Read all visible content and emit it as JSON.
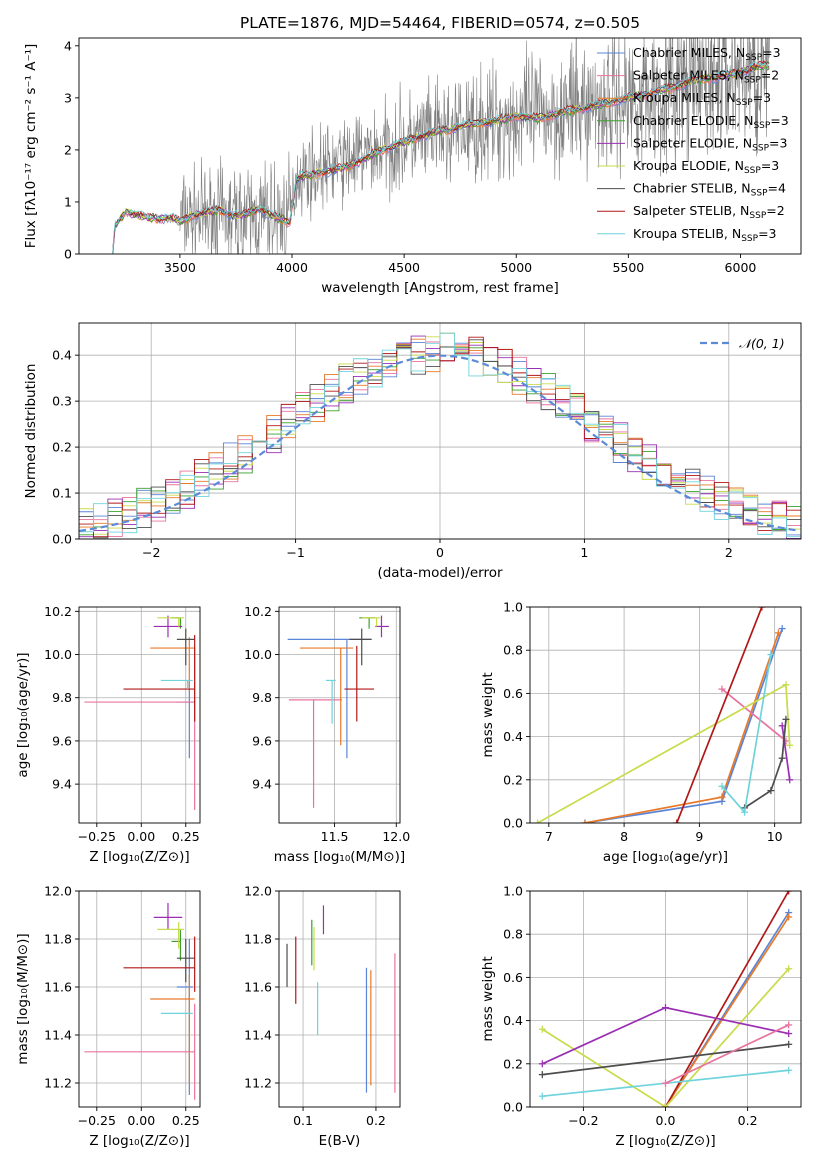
{
  "title": "PLATE=1876, MJD=54464, FIBERID=0574, z=0.505",
  "colors": {
    "Chabrier MILES": "#5b84d6",
    "Salpeter MILES": "#e8739f",
    "Kroupa MILES": "#e87a2a",
    "Chabrier ELODIE": "#3aa02e",
    "Salpeter ELODIE": "#9a2fb3",
    "Kroupa ELODIE": "#c9db4a",
    "Chabrier STELIB": "#4d4d4d",
    "Salpeter STELIB": "#b01818",
    "Kroupa STELIB": "#6fd3dc",
    "data": "#808080",
    "normal": "#5b8bd6"
  },
  "chart_data": [
    {
      "id": "spectrum",
      "type": "line",
      "xlabel": "wavelength [Angstrom, rest frame]",
      "ylabel": "Flux [fλ10⁻¹⁷ erg cm⁻² s⁻¹ A⁻¹]",
      "xlim": [
        3050,
        6270
      ],
      "ylim": [
        0,
        4.15
      ],
      "xticks": [
        3500,
        4000,
        4500,
        5000,
        5500,
        6000
      ],
      "yticks": [
        0,
        1,
        2,
        3,
        4
      ],
      "grid": false,
      "legend_position": "top-right",
      "legend": [
        {
          "label": "Chabrier MILES, N",
          "sub": "SSP",
          "suffix": "=3",
          "color_key": "Chabrier MILES"
        },
        {
          "label": "Salpeter MILES, N",
          "sub": "SSP",
          "suffix": "=2",
          "color_key": "Salpeter MILES"
        },
        {
          "label": "Kroupa MILES, N",
          "sub": "SSP",
          "suffix": "=3",
          "color_key": "Kroupa MILES"
        },
        {
          "label": "Chabrier ELODIE, N",
          "sub": "SSP",
          "suffix": "=3",
          "color_key": "Chabrier ELODIE"
        },
        {
          "label": "Salpeter ELODIE, N",
          "sub": "SSP",
          "suffix": "=3",
          "color_key": "Salpeter ELODIE"
        },
        {
          "label": "Kroupa ELODIE, N",
          "sub": "SSP",
          "suffix": "=3",
          "color_key": "Kroupa ELODIE"
        },
        {
          "label": "Chabrier STELIB, N",
          "sub": "SSP",
          "suffix": "=4",
          "color_key": "Chabrier STELIB"
        },
        {
          "label": "Salpeter STELIB, N",
          "sub": "SSP",
          "suffix": "=2",
          "color_key": "Salpeter STELIB"
        },
        {
          "label": "Kroupa STELIB, N",
          "sub": "SSP",
          "suffix": "=3",
          "color_key": "Kroupa STELIB"
        }
      ],
      "model_x": [
        3200,
        3210,
        3230,
        3260,
        3300,
        3340,
        3400,
        3460,
        3500,
        3560,
        3620,
        3680,
        3740,
        3800,
        3860,
        3900,
        3950,
        3990,
        4020,
        4100,
        4200,
        4300,
        4400,
        4500,
        4600,
        4700,
        4800,
        4900,
        5000,
        5100,
        5200,
        5300,
        5400,
        5500,
        5600,
        5700,
        5800,
        5900,
        6000,
        6100
      ],
      "model_y": [
        0.0,
        0.55,
        0.65,
        0.82,
        0.75,
        0.72,
        0.68,
        0.7,
        0.62,
        0.75,
        0.8,
        0.85,
        0.72,
        0.78,
        0.88,
        0.75,
        0.68,
        0.6,
        1.45,
        1.55,
        1.62,
        1.78,
        2.0,
        2.15,
        2.3,
        2.4,
        2.5,
        2.55,
        2.65,
        2.6,
        2.72,
        2.8,
        2.9,
        3.0,
        3.1,
        3.2,
        3.35,
        3.4,
        3.5,
        3.62
      ],
      "data_x_range": [
        3500,
        6130
      ],
      "data_trend_x": [
        3500,
        3990,
        4020,
        4500,
        5000,
        5500,
        6130
      ],
      "data_trend_y": [
        0.7,
        0.7,
        1.5,
        2.15,
        2.6,
        3.0,
        3.6
      ]
    },
    {
      "id": "residuals",
      "type": "histogram",
      "xlabel": "(data-model)/error",
      "ylabel": "Normed distribution",
      "xlim": [
        -2.5,
        2.5
      ],
      "ylim": [
        0,
        0.47
      ],
      "xticks": [
        -2,
        -1,
        0,
        1,
        2
      ],
      "yticks": [
        0.0,
        0.1,
        0.2,
        0.3,
        0.4
      ],
      "grid": true,
      "legend_position": "top-right",
      "legend_label": "𝒩(0, 1)",
      "bin_width": 0.1
    },
    {
      "id": "age-vs-Z",
      "type": "errorbar",
      "xlabel": "Z [log₁₀(Z/Z⊙)]",
      "ylabel": "age  [log₁₀(age/yr)]",
      "xlim": [
        -0.35,
        0.33
      ],
      "ylim": [
        9.22,
        10.22
      ],
      "xticks": [
        -0.25,
        0.0,
        0.25
      ],
      "yticks": [
        9.4,
        9.6,
        9.8,
        10.0,
        10.2
      ],
      "grid": true,
      "points": [
        {
          "color_key": "Chabrier MILES",
          "x": 0.27,
          "xerr": [
            0.07,
            0.02
          ],
          "y": 9.78,
          "yerr": [
            0.26,
            0.1
          ]
        },
        {
          "color_key": "Salpeter MILES",
          "x": 0.3,
          "xerr": [
            0.62,
            0.0
          ],
          "y": 9.78,
          "yerr": [
            0.5,
            0.25
          ]
        },
        {
          "color_key": "Kroupa MILES",
          "x": 0.27,
          "xerr": [
            0.22,
            0.03
          ],
          "y": 10.03,
          "yerr": [
            0.2,
            0.05
          ]
        },
        {
          "color_key": "Chabrier ELODIE",
          "x": 0.22,
          "xerr": [
            0.05,
            0.0
          ],
          "y": 10.17,
          "yerr": [
            0.05,
            0.0
          ]
        },
        {
          "color_key": "Salpeter ELODIE",
          "x": 0.15,
          "xerr": [
            0.08,
            0.08
          ],
          "y": 10.13,
          "yerr": [
            0.05,
            0.05
          ]
        },
        {
          "color_key": "Kroupa ELODIE",
          "x": 0.21,
          "xerr": [
            0.12,
            0.03
          ],
          "y": 10.17,
          "yerr": [
            0.04,
            0.0
          ]
        },
        {
          "color_key": "Chabrier STELIB",
          "x": 0.25,
          "xerr": [
            0.05,
            0.05
          ],
          "y": 10.07,
          "yerr": [
            0.12,
            0.05
          ]
        },
        {
          "color_key": "Salpeter STELIB",
          "x": 0.3,
          "xerr": [
            0.4,
            0.0
          ],
          "y": 9.84,
          "yerr": [
            0.15,
            0.25
          ]
        },
        {
          "color_key": "Kroupa STELIB",
          "x": 0.26,
          "xerr": [
            0.15,
            0.03
          ],
          "y": 9.88,
          "yerr": [
            0.04,
            0.0
          ]
        }
      ]
    },
    {
      "id": "age-vs-mass",
      "type": "errorbar",
      "xlabel": "mass [log₁₀(M/M⊙)]",
      "ylabel": "",
      "xlim": [
        11.05,
        12.03
      ],
      "ylim": [
        9.22,
        10.22
      ],
      "xticks": [
        11.5,
        12.0
      ],
      "yticks": [
        9.4,
        9.6,
        9.8,
        10.0,
        10.2
      ],
      "grid": true,
      "points": [
        {
          "color_key": "Chabrier MILES",
          "x": 11.6,
          "xerr": [
            0.48,
            0.2
          ],
          "y": 10.07,
          "yerr": [
            0.55,
            0.0
          ]
        },
        {
          "color_key": "Salpeter MILES",
          "x": 11.33,
          "xerr": [
            0.2,
            0.23
          ],
          "y": 9.79,
          "yerr": [
            0.5,
            0.0
          ]
        },
        {
          "color_key": "Kroupa MILES",
          "x": 11.55,
          "xerr": [
            0.33,
            0.1
          ],
          "y": 10.03,
          "yerr": [
            0.45,
            0.0
          ]
        },
        {
          "color_key": "Chabrier ELODIE",
          "x": 11.78,
          "xerr": [
            0.08,
            0.05
          ],
          "y": 10.17,
          "yerr": [
            0.05,
            0.0
          ]
        },
        {
          "color_key": "Salpeter ELODIE",
          "x": 11.88,
          "xerr": [
            0.05,
            0.06
          ],
          "y": 10.13,
          "yerr": [
            0.05,
            0.05
          ]
        },
        {
          "color_key": "Kroupa ELODIE",
          "x": 11.84,
          "xerr": [
            0.12,
            0.03
          ],
          "y": 10.17,
          "yerr": [
            0.04,
            0.0
          ]
        },
        {
          "color_key": "Chabrier STELIB",
          "x": 11.72,
          "xerr": [
            0.1,
            0.08
          ],
          "y": 10.07,
          "yerr": [
            0.12,
            0.05
          ]
        },
        {
          "color_key": "Salpeter STELIB",
          "x": 11.68,
          "xerr": [
            0.1,
            0.14
          ],
          "y": 9.84,
          "yerr": [
            0.15,
            0.2
          ]
        },
        {
          "color_key": "Kroupa STELIB",
          "x": 11.48,
          "xerr": [
            0.05,
            0.03
          ],
          "y": 9.88,
          "yerr": [
            0.2,
            0.0
          ]
        }
      ]
    },
    {
      "id": "massweight-vs-age",
      "type": "line",
      "xlabel": "age  [log₁₀(age/yr)]",
      "ylabel": "mass weight",
      "xlim": [
        6.75,
        10.35
      ],
      "ylim": [
        0,
        1
      ],
      "xticks": [
        7,
        8,
        9,
        10
      ],
      "yticks": [
        0.0,
        0.2,
        0.4,
        0.6,
        0.8,
        1.0
      ],
      "grid": true,
      "series": [
        {
          "color_key": "Chabrier MILES",
          "x": [
            7.48,
            9.3,
            10.1
          ],
          "y": [
            0.0,
            0.1,
            0.9
          ]
        },
        {
          "color_key": "Kroupa MILES",
          "x": [
            7.48,
            9.3,
            10.05
          ],
          "y": [
            0.0,
            0.12,
            0.88
          ]
        },
        {
          "color_key": "Salpeter MILES",
          "x": [
            9.3,
            10.15
          ],
          "y": [
            0.62,
            0.38
          ]
        },
        {
          "color_key": "Kroupa ELODIE",
          "x": [
            6.85,
            10.15,
            10.2
          ],
          "y": [
            0.0,
            0.64,
            0.36
          ]
        },
        {
          "color_key": "Salpeter ELODIE",
          "x": [
            10.1,
            10.2
          ],
          "y": [
            0.45,
            0.2
          ]
        },
        {
          "color_key": "Chabrier STELIB",
          "x": [
            9.6,
            9.95,
            10.1,
            10.15
          ],
          "y": [
            0.07,
            0.15,
            0.3,
            0.48
          ]
        },
        {
          "color_key": "Salpeter STELIB",
          "x": [
            8.7,
            9.83
          ],
          "y": [
            0.0,
            1.0
          ]
        },
        {
          "color_key": "Kroupa STELIB",
          "x": [
            9.3,
            9.6,
            9.95
          ],
          "y": [
            0.17,
            0.05,
            0.78
          ]
        }
      ]
    },
    {
      "id": "mass-vs-Z",
      "type": "errorbar",
      "xlabel": "Z [log₁₀(Z/Z⊙)]",
      "ylabel": "mass [log₁₀(M/M⊙)]",
      "xlim": [
        -0.35,
        0.33
      ],
      "ylim": [
        11.1,
        12.0
      ],
      "xticks": [
        -0.25,
        0.0,
        0.25
      ],
      "yticks": [
        11.2,
        11.4,
        11.6,
        11.8,
        12.0
      ],
      "grid": true,
      "points": [
        {
          "color_key": "Chabrier MILES",
          "x": 0.27,
          "xerr": [
            0.07,
            0.02
          ],
          "y": 11.6,
          "yerr": [
            0.45,
            0.2
          ]
        },
        {
          "color_key": "Salpeter MILES",
          "x": 0.3,
          "xerr": [
            0.62,
            0.0
          ],
          "y": 11.33,
          "yerr": [
            0.2,
            0.2
          ]
        },
        {
          "color_key": "Kroupa MILES",
          "x": 0.27,
          "xerr": [
            0.22,
            0.03
          ],
          "y": 11.55,
          "yerr": [
            0.35,
            0.1
          ]
        },
        {
          "color_key": "Chabrier ELODIE",
          "x": 0.22,
          "xerr": [
            0.05,
            0.0
          ],
          "y": 11.79,
          "yerr": [
            0.08,
            0.05
          ]
        },
        {
          "color_key": "Salpeter ELODIE",
          "x": 0.15,
          "xerr": [
            0.08,
            0.08
          ],
          "y": 11.89,
          "yerr": [
            0.05,
            0.06
          ]
        },
        {
          "color_key": "Kroupa ELODIE",
          "x": 0.21,
          "xerr": [
            0.12,
            0.03
          ],
          "y": 11.84,
          "yerr": [
            0.08,
            0.03
          ]
        },
        {
          "color_key": "Chabrier STELIB",
          "x": 0.25,
          "xerr": [
            0.05,
            0.05
          ],
          "y": 11.72,
          "yerr": [
            0.1,
            0.08
          ]
        },
        {
          "color_key": "Salpeter STELIB",
          "x": 0.3,
          "xerr": [
            0.4,
            0.0
          ],
          "y": 11.68,
          "yerr": [
            0.1,
            0.13
          ]
        },
        {
          "color_key": "Kroupa STELIB",
          "x": 0.26,
          "xerr": [
            0.15,
            0.03
          ],
          "y": 11.49,
          "yerr": [
            0.0,
            0.0
          ]
        }
      ]
    },
    {
      "id": "mass-vs-ebv",
      "type": "errorbar",
      "xlabel": "E(B-V)",
      "ylabel": "",
      "xlim": [
        0.067,
        0.233
      ],
      "ylim": [
        11.1,
        12.0
      ],
      "xticks": [
        0.1,
        0.2
      ],
      "yticks": [
        11.2,
        11.4,
        11.6,
        11.8,
        12.0
      ],
      "grid": true,
      "points": [
        {
          "color_key": "Chabrier STELIB",
          "x": 0.078,
          "xerr": [
            0,
            0
          ],
          "y": 11.7,
          "yerr": [
            0.1,
            0.08
          ]
        },
        {
          "color_key": "Salpeter STELIB",
          "x": 0.09,
          "xerr": [
            0,
            0
          ],
          "y": 11.68,
          "yerr": [
            0.15,
            0.13
          ]
        },
        {
          "color_key": "Chabrier ELODIE",
          "x": 0.112,
          "xerr": [
            0,
            0
          ],
          "y": 11.79,
          "yerr": [
            0.1,
            0.09
          ]
        },
        {
          "color_key": "Kroupa ELODIE",
          "x": 0.115,
          "xerr": [
            0,
            0
          ],
          "y": 11.77,
          "yerr": [
            0.1,
            0.08
          ]
        },
        {
          "color_key": "Salpeter ELODIE",
          "x": 0.128,
          "xerr": [
            0,
            0
          ],
          "y": 11.89,
          "yerr": [
            0.07,
            0.05
          ]
        },
        {
          "color_key": "Kroupa STELIB",
          "x": 0.12,
          "xerr": [
            0,
            0
          ],
          "y": 11.51,
          "yerr": [
            0.11,
            0.11
          ]
        },
        {
          "color_key": "Chabrier MILES",
          "x": 0.187,
          "xerr": [
            0,
            0
          ],
          "y": 11.42,
          "yerr": [
            0.26,
            0.26
          ]
        },
        {
          "color_key": "Kroupa MILES",
          "x": 0.193,
          "xerr": [
            0,
            0
          ],
          "y": 11.42,
          "yerr": [
            0.23,
            0.25
          ]
        },
        {
          "color_key": "Salpeter MILES",
          "x": 0.226,
          "xerr": [
            0,
            0
          ],
          "y": 11.46,
          "yerr": [
            0.3,
            0.28
          ]
        }
      ]
    },
    {
      "id": "massweight-vs-Z",
      "type": "line",
      "xlabel": "Z [log₁₀(Z/Z⊙)]",
      "ylabel": "mass weight",
      "xlim": [
        -0.33,
        0.33
      ],
      "ylim": [
        0,
        1
      ],
      "xticks": [
        -0.2,
        0.0,
        0.2
      ],
      "yticks": [
        0.0,
        0.2,
        0.4,
        0.6,
        0.8,
        1.0
      ],
      "grid": true,
      "series": [
        {
          "color_key": "Chabrier MILES",
          "x": [
            0.0,
            0.3
          ],
          "y": [
            0.0,
            0.9
          ]
        },
        {
          "color_key": "Kroupa MILES",
          "x": [
            0.0,
            0.3
          ],
          "y": [
            0.0,
            0.88
          ]
        },
        {
          "color_key": "Salpeter STELIB",
          "x": [
            0.0,
            0.3
          ],
          "y": [
            0.0,
            1.0
          ]
        },
        {
          "color_key": "Kroupa ELODIE",
          "x": [
            -0.3,
            0.0,
            0.3
          ],
          "y": [
            0.36,
            0.0,
            0.64
          ]
        },
        {
          "color_key": "Salpeter ELODIE",
          "x": [
            -0.3,
            0.0,
            0.3
          ],
          "y": [
            0.2,
            0.46,
            0.34
          ]
        },
        {
          "color_key": "Chabrier STELIB",
          "x": [
            -0.3,
            0.3
          ],
          "y": [
            0.15,
            0.29
          ]
        },
        {
          "color_key": "Kroupa STELIB",
          "x": [
            -0.3,
            0.3
          ],
          "y": [
            0.05,
            0.17
          ]
        },
        {
          "color_key": "Salpeter MILES",
          "x": [
            0.0,
            0.3
          ],
          "y": [
            0.11,
            0.38
          ]
        }
      ]
    }
  ]
}
